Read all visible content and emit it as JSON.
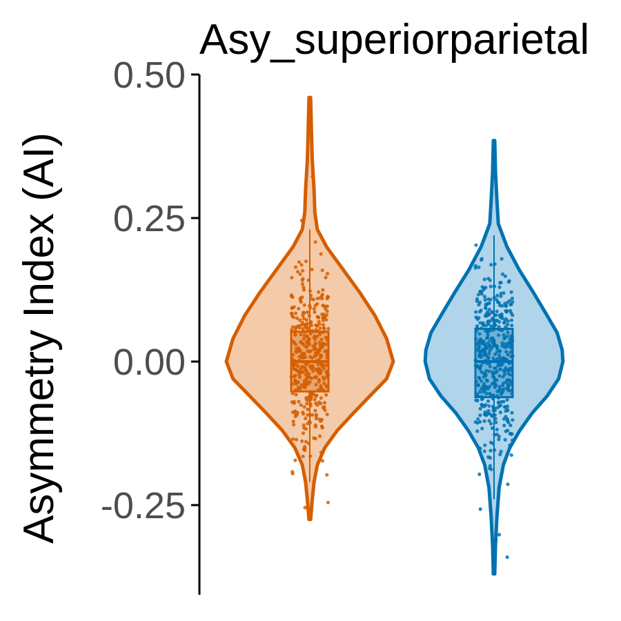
{
  "chart_data": {
    "type": "violin",
    "title": "Asy_superiorparietal",
    "xlabel": "",
    "ylabel": "Asymmetry Index (AI)",
    "ylim": [
      -0.4,
      0.5
    ],
    "yticks": [
      {
        "value": 0.5,
        "label": "0.50"
      },
      {
        "value": 0.25,
        "label": "0.25"
      },
      {
        "value": 0.0,
        "label": "0.00"
      },
      {
        "value": -0.25,
        "label": "-0.25"
      }
    ],
    "grid": false,
    "legend": "none",
    "series": [
      {
        "color": "#d55e00",
        "fill": "#f3cbaa",
        "box": {
          "q1": -0.052,
          "median": 0.0,
          "q3": 0.052,
          "whisker_low": -0.21,
          "whisker_high": 0.23
        },
        "violin_range": [
          -0.275,
          0.46
        ],
        "density": [
          [
            0.46,
            0.01
          ],
          [
            0.4,
            0.02
          ],
          [
            0.35,
            0.03
          ],
          [
            0.3,
            0.05
          ],
          [
            0.26,
            0.06
          ],
          [
            0.23,
            0.09
          ],
          [
            0.2,
            0.2
          ],
          [
            0.16,
            0.4
          ],
          [
            0.12,
            0.6
          ],
          [
            0.08,
            0.78
          ],
          [
            0.04,
            0.92
          ],
          [
            0.0,
            1.0
          ],
          [
            -0.03,
            0.92
          ],
          [
            -0.06,
            0.72
          ],
          [
            -0.09,
            0.52
          ],
          [
            -0.12,
            0.33
          ],
          [
            -0.15,
            0.18
          ],
          [
            -0.18,
            0.09
          ],
          [
            -0.21,
            0.05
          ],
          [
            -0.24,
            0.03
          ],
          [
            -0.275,
            0.01
          ]
        ],
        "n_points": 430
      },
      {
        "color": "#0072b2",
        "fill": "#b0d4ea",
        "box": {
          "q1": -0.062,
          "median": 0.0,
          "q3": 0.057,
          "whisker_low": -0.24,
          "whisker_high": 0.22
        },
        "violin_range": [
          -0.37,
          0.385
        ],
        "density": [
          [
            0.385,
            0.01
          ],
          [
            0.33,
            0.02
          ],
          [
            0.28,
            0.04
          ],
          [
            0.24,
            0.06
          ],
          [
            0.2,
            0.18
          ],
          [
            0.16,
            0.35
          ],
          [
            0.12,
            0.55
          ],
          [
            0.08,
            0.74
          ],
          [
            0.05,
            0.88
          ],
          [
            0.02,
            0.95
          ],
          [
            0.0,
            0.96
          ],
          [
            -0.03,
            0.9
          ],
          [
            -0.06,
            0.74
          ],
          [
            -0.09,
            0.53
          ],
          [
            -0.12,
            0.36
          ],
          [
            -0.15,
            0.22
          ],
          [
            -0.18,
            0.13
          ],
          [
            -0.22,
            0.07
          ],
          [
            -0.27,
            0.04
          ],
          [
            -0.32,
            0.02
          ],
          [
            -0.37,
            0.01
          ]
        ],
        "n_points": 470
      }
    ]
  }
}
